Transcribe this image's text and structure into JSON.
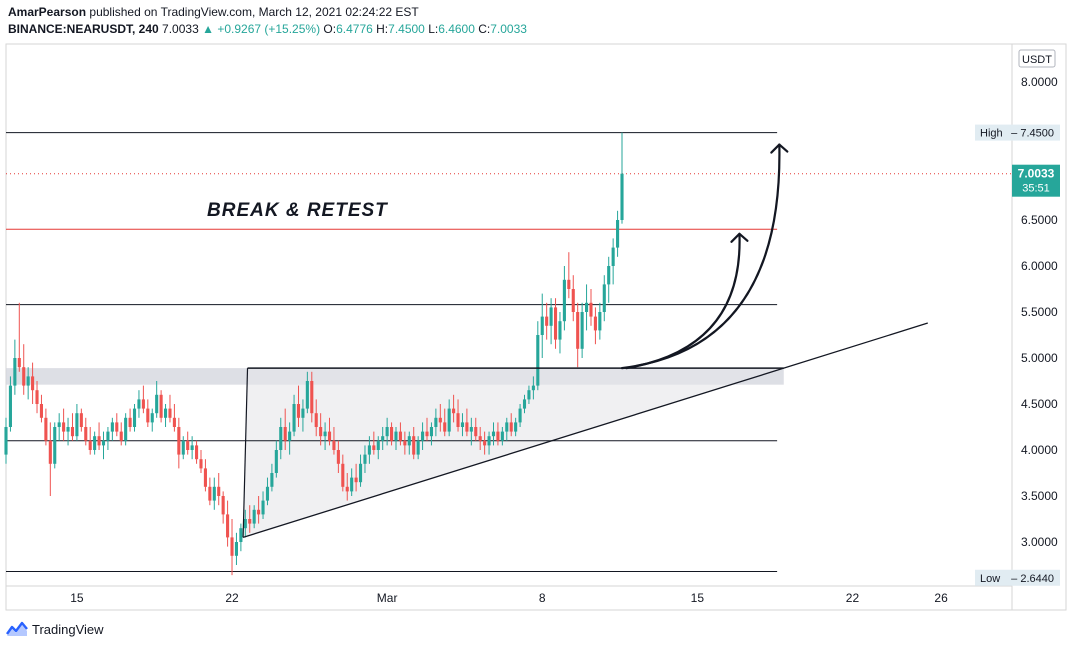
{
  "header": {
    "author": "AmarPearson",
    "published_text": "published on TradingView.com, March 12, 2021 02:24:22 EST",
    "symbol": "BINANCE:NEARUSDT, 240",
    "last": "7.0033",
    "change_arrow": "▲",
    "change": "+0.9267 (+15.25%)",
    "o_label": "O:",
    "o_value": "6.4776",
    "h_label": "H:",
    "h_value": "7.4500",
    "l_label": "L:",
    "l_value": "6.4600",
    "c_label": "C:",
    "c_value": "7.0033"
  },
  "footer": {
    "brand": "TradingView",
    "brand_icon": "tradingview-logo-icon"
  },
  "colors": {
    "up": "#26a69a",
    "down": "#ef5350",
    "grid_text": "#131722",
    "price_tag": "#26a69a",
    "resist_red": "#e53935",
    "zone": "#d1d4dc"
  },
  "chart_data": {
    "type": "candlestick",
    "title": "",
    "currency_badge": "USDT",
    "ylim": [
      2.5,
      8.5
    ],
    "yticks": [
      "3.0000",
      "3.5000",
      "4.0000",
      "4.5000",
      "5.0000",
      "5.5000",
      "6.0000",
      "6.5000",
      "8.0000"
    ],
    "xticks": [
      {
        "day": 15,
        "label": "15"
      },
      {
        "day": 22,
        "label": "22"
      },
      {
        "day": 29,
        "label": "Mar"
      },
      {
        "day": 36,
        "label": "8"
      },
      {
        "day": 43,
        "label": "15"
      },
      {
        "day": 50,
        "label": "22"
      },
      {
        "day": 54,
        "label": "26"
      }
    ],
    "xrange_days": [
      11.8,
      57.2
    ],
    "high_label": {
      "text": "High",
      "value": "7.4500",
      "y": 7.45
    },
    "low_label": {
      "text": "Low",
      "value": "2.6440",
      "y": 2.644
    },
    "last_price": {
      "value": "7.0033",
      "countdown": "35:51",
      "y": 7.0033
    },
    "annotation": "BREAK & RETEST",
    "horizontal_levels": [
      {
        "y": 7.45,
        "from_day": 11.8,
        "to_day": 46.6,
        "color": "#131722"
      },
      {
        "y": 6.4,
        "from_day": 11.8,
        "to_day": 46.6,
        "color": "#e53935"
      },
      {
        "y": 5.58,
        "from_day": 11.8,
        "to_day": 46.6,
        "color": "#131722"
      },
      {
        "y": 4.1,
        "from_day": 11.8,
        "to_day": 46.6,
        "color": "#131722"
      },
      {
        "y": 2.68,
        "from_day": 11.8,
        "to_day": 46.6,
        "color": "#131722"
      }
    ],
    "resistance_zone": {
      "y_top": 4.89,
      "y_bottom": 4.71,
      "from_day": 11.8,
      "to_day": 46.9
    },
    "triangle": {
      "apex_left_top": [
        22.7,
        4.89
      ],
      "apex_left_bottom": [
        22.5,
        3.05
      ],
      "right": [
        46.9,
        4.89
      ]
    },
    "trendline": {
      "from": [
        22.5,
        3.05
      ],
      "to": [
        53.4,
        5.38
      ]
    },
    "arrows": [
      {
        "from": [
          39.8,
          4.89
        ],
        "to": [
          44.9,
          6.35
        ]
      },
      {
        "from": [
          39.6,
          4.89
        ],
        "to": [
          46.7,
          7.32
        ]
      }
    ],
    "candles": [
      {
        "d": 11.8,
        "o": 3.95,
        "h": 4.35,
        "l": 3.85,
        "c": 4.25
      },
      {
        "d": 12.0,
        "o": 4.25,
        "h": 4.8,
        "l": 4.2,
        "c": 4.7
      },
      {
        "d": 12.2,
        "o": 4.7,
        "h": 5.2,
        "l": 4.6,
        "c": 5.0
      },
      {
        "d": 12.4,
        "o": 5.0,
        "h": 5.6,
        "l": 4.85,
        "c": 4.9
      },
      {
        "d": 12.6,
        "o": 4.9,
        "h": 5.15,
        "l": 4.6,
        "c": 4.7
      },
      {
        "d": 12.8,
        "o": 4.7,
        "h": 4.9,
        "l": 4.55,
        "c": 4.8
      },
      {
        "d": 13.0,
        "o": 4.8,
        "h": 4.95,
        "l": 4.5,
        "c": 4.65
      },
      {
        "d": 13.2,
        "o": 4.65,
        "h": 4.75,
        "l": 4.4,
        "c": 4.5
      },
      {
        "d": 13.4,
        "o": 4.5,
        "h": 4.6,
        "l": 4.3,
        "c": 4.35
      },
      {
        "d": 13.6,
        "o": 4.35,
        "h": 4.45,
        "l": 4.05,
        "c": 4.1
      },
      {
        "d": 13.8,
        "o": 4.1,
        "h": 4.3,
        "l": 3.5,
        "c": 3.85
      },
      {
        "d": 14.0,
        "o": 3.85,
        "h": 4.3,
        "l": 3.8,
        "c": 4.25
      },
      {
        "d": 14.2,
        "o": 4.25,
        "h": 4.4,
        "l": 4.1,
        "c": 4.3
      },
      {
        "d": 14.4,
        "o": 4.3,
        "h": 4.45,
        "l": 4.1,
        "c": 4.2
      },
      {
        "d": 14.6,
        "o": 4.2,
        "h": 4.35,
        "l": 4.05,
        "c": 4.25
      },
      {
        "d": 14.8,
        "o": 4.25,
        "h": 4.4,
        "l": 4.1,
        "c": 4.15
      },
      {
        "d": 15.0,
        "o": 4.15,
        "h": 4.5,
        "l": 4.1,
        "c": 4.4
      },
      {
        "d": 15.2,
        "o": 4.4,
        "h": 4.45,
        "l": 4.2,
        "c": 4.25
      },
      {
        "d": 15.4,
        "o": 4.25,
        "h": 4.35,
        "l": 4.05,
        "c": 4.1
      },
      {
        "d": 15.6,
        "o": 4.1,
        "h": 4.25,
        "l": 3.95,
        "c": 4.0
      },
      {
        "d": 15.8,
        "o": 4.0,
        "h": 4.2,
        "l": 3.95,
        "c": 4.15
      },
      {
        "d": 16.0,
        "o": 4.15,
        "h": 4.3,
        "l": 4.0,
        "c": 4.05
      },
      {
        "d": 16.2,
        "o": 4.05,
        "h": 4.2,
        "l": 3.9,
        "c": 4.1
      },
      {
        "d": 16.4,
        "o": 4.1,
        "h": 4.25,
        "l": 4.0,
        "c": 4.2
      },
      {
        "d": 16.6,
        "o": 4.2,
        "h": 4.35,
        "l": 4.1,
        "c": 4.3
      },
      {
        "d": 16.8,
        "o": 4.3,
        "h": 4.4,
        "l": 4.15,
        "c": 4.2
      },
      {
        "d": 17.0,
        "o": 4.2,
        "h": 4.3,
        "l": 4.05,
        "c": 4.1
      },
      {
        "d": 17.2,
        "o": 4.1,
        "h": 4.4,
        "l": 4.05,
        "c": 4.35
      },
      {
        "d": 17.4,
        "o": 4.35,
        "h": 4.45,
        "l": 4.2,
        "c": 4.25
      },
      {
        "d": 17.6,
        "o": 4.25,
        "h": 4.5,
        "l": 4.2,
        "c": 4.45
      },
      {
        "d": 17.8,
        "o": 4.45,
        "h": 4.65,
        "l": 4.35,
        "c": 4.55
      },
      {
        "d": 18.0,
        "o": 4.55,
        "h": 4.7,
        "l": 4.4,
        "c": 4.45
      },
      {
        "d": 18.2,
        "o": 4.45,
        "h": 4.55,
        "l": 4.25,
        "c": 4.3
      },
      {
        "d": 18.4,
        "o": 4.3,
        "h": 4.45,
        "l": 4.2,
        "c": 4.4
      },
      {
        "d": 18.6,
        "o": 4.4,
        "h": 4.75,
        "l": 4.35,
        "c": 4.6
      },
      {
        "d": 18.8,
        "o": 4.6,
        "h": 4.65,
        "l": 4.3,
        "c": 4.35
      },
      {
        "d": 19.0,
        "o": 4.35,
        "h": 4.5,
        "l": 4.25,
        "c": 4.45
      },
      {
        "d": 19.2,
        "o": 4.45,
        "h": 4.6,
        "l": 4.3,
        "c": 4.35
      },
      {
        "d": 19.4,
        "o": 4.35,
        "h": 4.5,
        "l": 4.2,
        "c": 4.25
      },
      {
        "d": 19.6,
        "o": 4.25,
        "h": 4.35,
        "l": 3.8,
        "c": 3.95
      },
      {
        "d": 19.8,
        "o": 3.95,
        "h": 4.15,
        "l": 3.9,
        "c": 4.1
      },
      {
        "d": 20.0,
        "o": 4.1,
        "h": 4.2,
        "l": 3.95,
        "c": 4.0
      },
      {
        "d": 20.2,
        "o": 4.0,
        "h": 4.15,
        "l": 3.9,
        "c": 4.05
      },
      {
        "d": 20.4,
        "o": 4.05,
        "h": 4.1,
        "l": 3.85,
        "c": 3.9
      },
      {
        "d": 20.6,
        "o": 3.9,
        "h": 4.0,
        "l": 3.75,
        "c": 3.8
      },
      {
        "d": 20.8,
        "o": 3.8,
        "h": 3.9,
        "l": 3.55,
        "c": 3.6
      },
      {
        "d": 21.0,
        "o": 3.6,
        "h": 3.7,
        "l": 3.4,
        "c": 3.45
      },
      {
        "d": 21.2,
        "o": 3.45,
        "h": 3.7,
        "l": 3.35,
        "c": 3.6
      },
      {
        "d": 21.4,
        "o": 3.6,
        "h": 3.75,
        "l": 3.4,
        "c": 3.5
      },
      {
        "d": 21.6,
        "o": 3.5,
        "h": 3.55,
        "l": 3.2,
        "c": 3.3
      },
      {
        "d": 21.8,
        "o": 3.3,
        "h": 3.45,
        "l": 2.95,
        "c": 3.05
      },
      {
        "d": 22.0,
        "o": 3.05,
        "h": 3.25,
        "l": 2.64,
        "c": 2.85
      },
      {
        "d": 22.2,
        "o": 2.85,
        "h": 3.1,
        "l": 2.75,
        "c": 3.0
      },
      {
        "d": 22.4,
        "o": 3.0,
        "h": 3.2,
        "l": 2.9,
        "c": 3.15
      },
      {
        "d": 22.6,
        "o": 3.15,
        "h": 3.35,
        "l": 3.05,
        "c": 3.25
      },
      {
        "d": 22.8,
        "o": 3.25,
        "h": 3.4,
        "l": 3.1,
        "c": 3.2
      },
      {
        "d": 23.0,
        "o": 3.2,
        "h": 3.4,
        "l": 3.15,
        "c": 3.35
      },
      {
        "d": 23.2,
        "o": 3.35,
        "h": 3.5,
        "l": 3.2,
        "c": 3.3
      },
      {
        "d": 23.4,
        "o": 3.3,
        "h": 3.55,
        "l": 3.25,
        "c": 3.45
      },
      {
        "d": 23.6,
        "o": 3.45,
        "h": 3.7,
        "l": 3.4,
        "c": 3.6
      },
      {
        "d": 23.8,
        "o": 3.6,
        "h": 3.85,
        "l": 3.55,
        "c": 3.75
      },
      {
        "d": 24.0,
        "o": 3.75,
        "h": 4.1,
        "l": 3.7,
        "c": 4.0
      },
      {
        "d": 24.2,
        "o": 4.0,
        "h": 4.35,
        "l": 3.9,
        "c": 4.25
      },
      {
        "d": 24.4,
        "o": 4.25,
        "h": 4.45,
        "l": 4.0,
        "c": 4.1
      },
      {
        "d": 24.6,
        "o": 4.1,
        "h": 4.3,
        "l": 3.95,
        "c": 4.2
      },
      {
        "d": 24.8,
        "o": 4.2,
        "h": 4.6,
        "l": 4.15,
        "c": 4.5
      },
      {
        "d": 25.0,
        "o": 4.5,
        "h": 4.7,
        "l": 4.25,
        "c": 4.35
      },
      {
        "d": 25.2,
        "o": 4.35,
        "h": 4.55,
        "l": 4.2,
        "c": 4.45
      },
      {
        "d": 25.4,
        "o": 4.45,
        "h": 4.85,
        "l": 4.4,
        "c": 4.75
      },
      {
        "d": 25.6,
        "o": 4.75,
        "h": 4.85,
        "l": 4.3,
        "c": 4.4
      },
      {
        "d": 25.8,
        "o": 4.4,
        "h": 4.55,
        "l": 4.15,
        "c": 4.25
      },
      {
        "d": 26.0,
        "o": 4.25,
        "h": 4.4,
        "l": 4.05,
        "c": 4.15
      },
      {
        "d": 26.2,
        "o": 4.15,
        "h": 4.3,
        "l": 4.0,
        "c": 4.2
      },
      {
        "d": 26.4,
        "o": 4.2,
        "h": 4.35,
        "l": 4.05,
        "c": 4.1
      },
      {
        "d": 26.6,
        "o": 4.1,
        "h": 4.25,
        "l": 3.95,
        "c": 4.0
      },
      {
        "d": 26.8,
        "o": 4.0,
        "h": 4.1,
        "l": 3.75,
        "c": 3.85
      },
      {
        "d": 27.0,
        "o": 3.85,
        "h": 3.95,
        "l": 3.55,
        "c": 3.6
      },
      {
        "d": 27.2,
        "o": 3.6,
        "h": 3.75,
        "l": 3.45,
        "c": 3.55
      },
      {
        "d": 27.4,
        "o": 3.55,
        "h": 3.8,
        "l": 3.5,
        "c": 3.7
      },
      {
        "d": 27.6,
        "o": 3.7,
        "h": 3.85,
        "l": 3.55,
        "c": 3.65
      },
      {
        "d": 27.8,
        "o": 3.65,
        "h": 3.95,
        "l": 3.6,
        "c": 3.85
      },
      {
        "d": 28.0,
        "o": 3.85,
        "h": 4.05,
        "l": 3.75,
        "c": 3.95
      },
      {
        "d": 28.2,
        "o": 3.95,
        "h": 4.15,
        "l": 3.85,
        "c": 4.05
      },
      {
        "d": 28.4,
        "o": 4.05,
        "h": 4.2,
        "l": 3.95,
        "c": 4.0
      },
      {
        "d": 28.6,
        "o": 4.0,
        "h": 4.15,
        "l": 3.9,
        "c": 4.1
      },
      {
        "d": 28.8,
        "o": 4.1,
        "h": 4.25,
        "l": 4.0,
        "c": 4.15
      },
      {
        "d": 29.0,
        "o": 4.15,
        "h": 4.35,
        "l": 4.05,
        "c": 4.25
      },
      {
        "d": 29.2,
        "o": 4.25,
        "h": 4.3,
        "l": 4.05,
        "c": 4.1
      },
      {
        "d": 29.4,
        "o": 4.1,
        "h": 4.25,
        "l": 4.0,
        "c": 4.2
      },
      {
        "d": 29.6,
        "o": 4.2,
        "h": 4.3,
        "l": 4.05,
        "c": 4.1
      },
      {
        "d": 29.8,
        "o": 4.1,
        "h": 4.2,
        "l": 3.95,
        "c": 4.05
      },
      {
        "d": 30.0,
        "o": 4.05,
        "h": 4.2,
        "l": 3.95,
        "c": 4.15
      },
      {
        "d": 30.2,
        "o": 4.15,
        "h": 4.25,
        "l": 3.9,
        "c": 3.95
      },
      {
        "d": 30.4,
        "o": 3.95,
        "h": 4.15,
        "l": 3.9,
        "c": 4.1
      },
      {
        "d": 30.6,
        "o": 4.1,
        "h": 4.3,
        "l": 4.0,
        "c": 4.2
      },
      {
        "d": 30.8,
        "o": 4.2,
        "h": 4.35,
        "l": 4.1,
        "c": 4.15
      },
      {
        "d": 31.0,
        "o": 4.15,
        "h": 4.3,
        "l": 4.05,
        "c": 4.25
      },
      {
        "d": 31.2,
        "o": 4.25,
        "h": 4.45,
        "l": 4.15,
        "c": 4.35
      },
      {
        "d": 31.4,
        "o": 4.35,
        "h": 4.5,
        "l": 4.2,
        "c": 4.3
      },
      {
        "d": 31.6,
        "o": 4.3,
        "h": 4.45,
        "l": 4.15,
        "c": 4.2
      },
      {
        "d": 31.8,
        "o": 4.2,
        "h": 4.55,
        "l": 4.15,
        "c": 4.45
      },
      {
        "d": 32.0,
        "o": 4.45,
        "h": 4.6,
        "l": 4.3,
        "c": 4.4
      },
      {
        "d": 32.2,
        "o": 4.4,
        "h": 4.55,
        "l": 4.2,
        "c": 4.25
      },
      {
        "d": 32.4,
        "o": 4.25,
        "h": 4.4,
        "l": 4.15,
        "c": 4.3
      },
      {
        "d": 32.6,
        "o": 4.3,
        "h": 4.45,
        "l": 4.15,
        "c": 4.2
      },
      {
        "d": 32.8,
        "o": 4.2,
        "h": 4.35,
        "l": 4.05,
        "c": 4.25
      },
      {
        "d": 33.0,
        "o": 4.25,
        "h": 4.35,
        "l": 4.1,
        "c": 4.15
      },
      {
        "d": 33.2,
        "o": 4.15,
        "h": 4.25,
        "l": 4.0,
        "c": 4.1
      },
      {
        "d": 33.4,
        "o": 4.1,
        "h": 4.2,
        "l": 3.95,
        "c": 4.05
      },
      {
        "d": 33.6,
        "o": 4.05,
        "h": 4.2,
        "l": 3.95,
        "c": 4.15
      },
      {
        "d": 33.8,
        "o": 4.15,
        "h": 4.3,
        "l": 4.05,
        "c": 4.2
      },
      {
        "d": 34.0,
        "o": 4.2,
        "h": 4.3,
        "l": 4.05,
        "c": 4.1
      },
      {
        "d": 34.2,
        "o": 4.1,
        "h": 4.25,
        "l": 4.05,
        "c": 4.2
      },
      {
        "d": 34.4,
        "o": 4.2,
        "h": 4.35,
        "l": 4.1,
        "c": 4.3
      },
      {
        "d": 34.6,
        "o": 4.3,
        "h": 4.4,
        "l": 4.15,
        "c": 4.2
      },
      {
        "d": 34.8,
        "o": 4.2,
        "h": 4.35,
        "l": 4.15,
        "c": 4.3
      },
      {
        "d": 35.0,
        "o": 4.3,
        "h": 4.5,
        "l": 4.25,
        "c": 4.45
      },
      {
        "d": 35.2,
        "o": 4.45,
        "h": 4.6,
        "l": 4.4,
        "c": 4.55
      },
      {
        "d": 35.4,
        "o": 4.55,
        "h": 4.7,
        "l": 4.5,
        "c": 4.65
      },
      {
        "d": 35.6,
        "o": 4.65,
        "h": 4.8,
        "l": 4.55,
        "c": 4.7
      },
      {
        "d": 35.8,
        "o": 4.7,
        "h": 5.4,
        "l": 4.65,
        "c": 5.25
      },
      {
        "d": 36.0,
        "o": 5.25,
        "h": 5.7,
        "l": 5.0,
        "c": 5.45
      },
      {
        "d": 36.2,
        "o": 5.45,
        "h": 5.6,
        "l": 5.2,
        "c": 5.35
      },
      {
        "d": 36.4,
        "o": 5.35,
        "h": 5.65,
        "l": 5.15,
        "c": 5.55
      },
      {
        "d": 36.6,
        "o": 5.55,
        "h": 5.65,
        "l": 5.1,
        "c": 5.2
      },
      {
        "d": 36.8,
        "o": 5.2,
        "h": 5.5,
        "l": 5.05,
        "c": 5.4
      },
      {
        "d": 37.0,
        "o": 5.4,
        "h": 6.0,
        "l": 5.3,
        "c": 5.85
      },
      {
        "d": 37.2,
        "o": 5.85,
        "h": 6.15,
        "l": 5.65,
        "c": 5.75
      },
      {
        "d": 37.4,
        "o": 5.75,
        "h": 5.9,
        "l": 5.4,
        "c": 5.5
      },
      {
        "d": 37.6,
        "o": 5.5,
        "h": 5.6,
        "l": 4.9,
        "c": 5.1
      },
      {
        "d": 37.8,
        "o": 5.1,
        "h": 5.6,
        "l": 5.0,
        "c": 5.5
      },
      {
        "d": 38.0,
        "o": 5.5,
        "h": 5.8,
        "l": 5.3,
        "c": 5.6
      },
      {
        "d": 38.2,
        "o": 5.6,
        "h": 5.75,
        "l": 5.35,
        "c": 5.45
      },
      {
        "d": 38.4,
        "o": 5.45,
        "h": 5.55,
        "l": 5.15,
        "c": 5.3
      },
      {
        "d": 38.6,
        "o": 5.3,
        "h": 5.6,
        "l": 5.2,
        "c": 5.5
      },
      {
        "d": 38.8,
        "o": 5.5,
        "h": 5.9,
        "l": 5.4,
        "c": 5.8
      },
      {
        "d": 39.0,
        "o": 5.8,
        "h": 6.1,
        "l": 5.6,
        "c": 6.0
      },
      {
        "d": 39.2,
        "o": 6.0,
        "h": 6.3,
        "l": 5.8,
        "c": 6.2
      },
      {
        "d": 39.4,
        "o": 6.2,
        "h": 6.6,
        "l": 6.1,
        "c": 6.5
      },
      {
        "d": 39.6,
        "o": 6.5,
        "h": 7.45,
        "l": 6.46,
        "c": 7.0033
      }
    ]
  }
}
